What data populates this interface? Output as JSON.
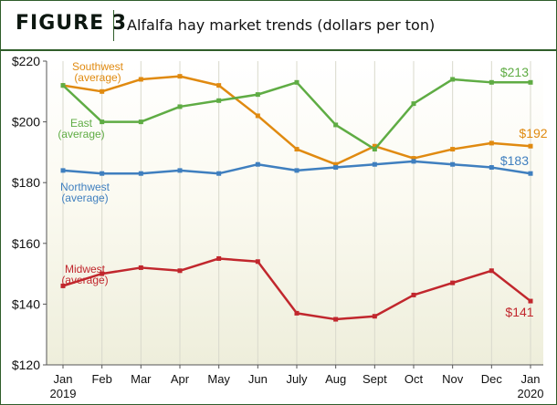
{
  "header": {
    "figure_label": "FIGURE 3",
    "title": "Alfalfa hay market trends (dollars per ton)"
  },
  "chart_data": {
    "type": "line",
    "categories": [
      "Jan",
      "Feb",
      "Mar",
      "Apr",
      "May",
      "Jun",
      "July",
      "Aug",
      "Sept",
      "Oct",
      "Nov",
      "Dec",
      "Jan"
    ],
    "category_years": {
      "0": "2019",
      "12": "2020"
    },
    "title": "Alfalfa hay market trends (dollars per ton)",
    "xlabel": "",
    "ylabel": "",
    "ylim": [
      120,
      220
    ],
    "yticks": [
      120,
      140,
      160,
      180,
      200,
      220
    ],
    "ytick_labels": [
      "$120",
      "$140",
      "$160",
      "$180",
      "$200",
      "$220"
    ],
    "grid": "vertical",
    "legend": "none",
    "series": [
      {
        "name_lines": [
          "Southwest",
          "(average)"
        ],
        "color": "#e08a10",
        "values": [
          212,
          210,
          214,
          215,
          212,
          202,
          191,
          186,
          192,
          188,
          191,
          193,
          192
        ],
        "end_label": "$192"
      },
      {
        "name_lines": [
          "East",
          "(average)"
        ],
        "color": "#5fac44",
        "values": [
          212,
          200,
          200,
          205,
          207,
          209,
          213,
          199,
          191,
          206,
          214,
          213,
          213
        ],
        "end_label": "$213"
      },
      {
        "name_lines": [
          "Northwest",
          "(average)"
        ],
        "color": "#3f7fbf",
        "values": [
          184,
          183,
          183,
          184,
          183,
          186,
          184,
          185,
          186,
          187,
          186,
          185,
          183
        ],
        "end_label": "$183"
      },
      {
        "name_lines": [
          "Midwest",
          "(average)"
        ],
        "color": "#c1272d",
        "values": [
          146,
          150,
          152,
          151,
          155,
          154,
          137,
          135,
          136,
          143,
          147,
          151,
          141
        ],
        "end_label": "$141"
      }
    ]
  }
}
